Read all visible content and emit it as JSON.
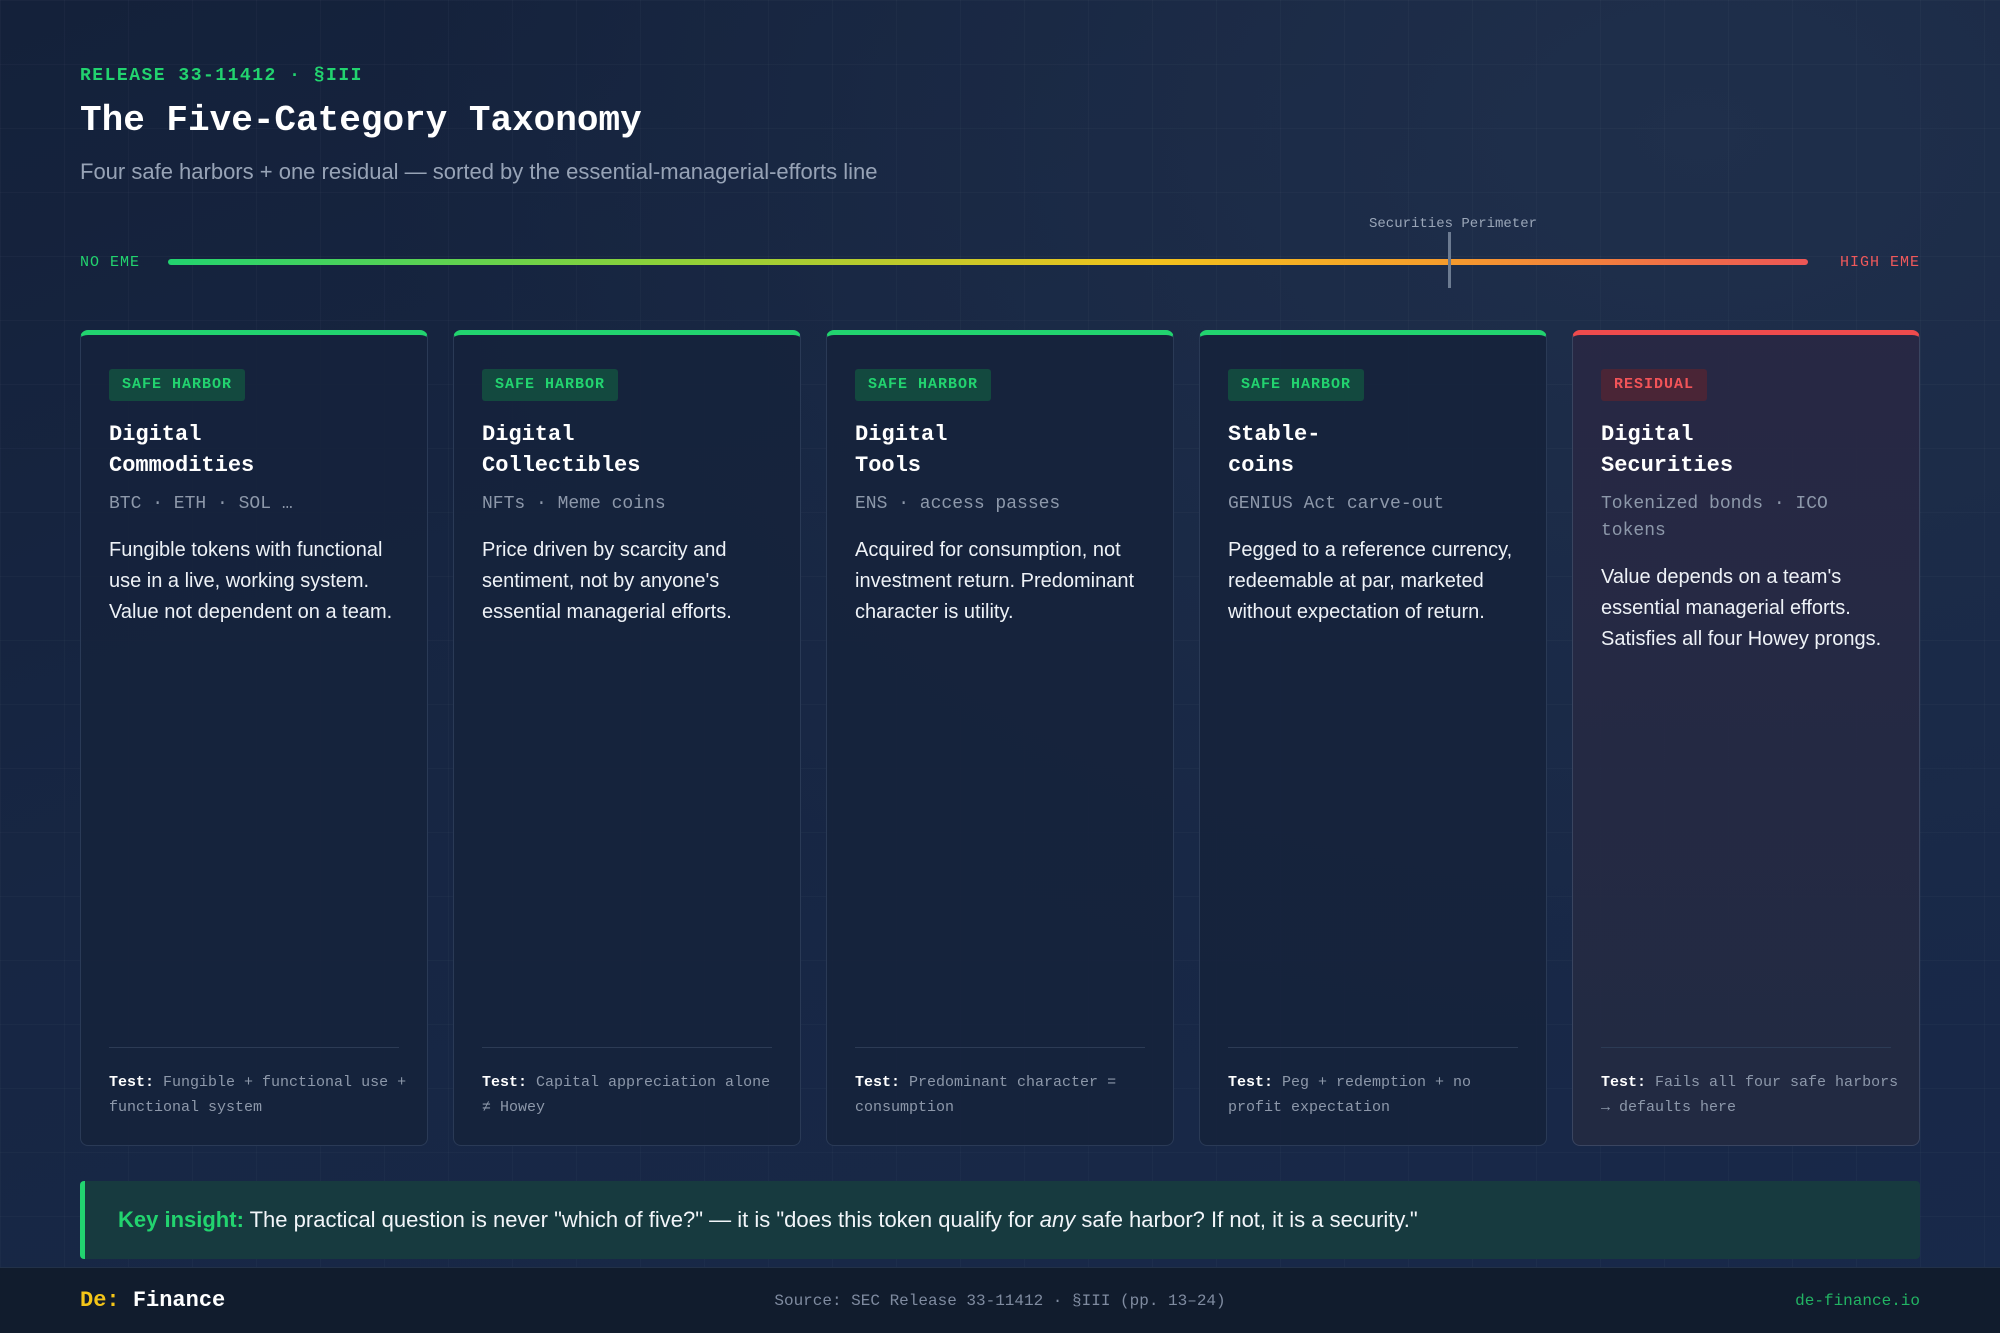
{
  "header": {
    "kicker": "RELEASE 33-11412 · §III",
    "title": "The Five-Category Taxonomy",
    "subtitle": "Four safe harbors + one residual — sorted by the essential-managerial-efforts line"
  },
  "scale": {
    "low_label": "NO EME",
    "high_label": "HIGH EME",
    "marker_label": "Securities Perimeter"
  },
  "cards": [
    {
      "badge": "SAFE HARBOR",
      "name_line1": "Digital",
      "name_line2": "Commodities",
      "examples": "BTC · ETH · SOL …",
      "description": "Fungible tokens with functional use in a live, working system. Value not dependent on a team.",
      "test_label": "Test:",
      "test_text": "Fungible + functional use + functional system"
    },
    {
      "badge": "SAFE HARBOR",
      "name_line1": "Digital",
      "name_line2": "Collectibles",
      "examples": "NFTs · Meme coins",
      "description": "Price driven by scarcity and sentiment, not by anyone's essential managerial efforts.",
      "test_label": "Test:",
      "test_text": "Capital appreciation alone ≠ Howey"
    },
    {
      "badge": "SAFE HARBOR",
      "name_line1": "Digital",
      "name_line2": "Tools",
      "examples": "ENS · access passes",
      "description": "Acquired for consumption, not investment return. Predominant character is utility.",
      "test_label": "Test:",
      "test_text": "Predominant character = consumption"
    },
    {
      "badge": "SAFE HARBOR",
      "name_line1": "Stable-",
      "name_line2": "coins",
      "examples": "GENIUS Act carve-out",
      "description": "Pegged to a reference currency, redeemable at par, marketed without expectation of return.",
      "test_label": "Test:",
      "test_text": "Peg + redemption + no profit expectation"
    },
    {
      "badge": "RESIDUAL",
      "name_line1": "Digital",
      "name_line2": "Securities",
      "examples": "Tokenized bonds · ICO tokens",
      "description": "Value depends on a team's essential managerial efforts. Satisfies all four Howey prongs.",
      "test_label": "Test:",
      "test_text": "Fails all four safe harbors → defaults here"
    }
  ],
  "insight": {
    "label": "Key insight:",
    "text_before": " The practical question is never \"which of five?\" — it is \"does this token qualify for ",
    "emphasis": "any",
    "text_after": " safe harbor? If not, it is a security.\""
  },
  "footer": {
    "brand_prefix": "De:",
    "brand_name": "Finance",
    "source": "Source: SEC Release 33-11412 · §III (pp. 13–24)",
    "site": "de-finance.io"
  },
  "colors": {
    "accent_green": "#22d36f",
    "residual_red": "#ee4b4d",
    "brand_yellow": "#f4c518",
    "background": "#16233e"
  }
}
